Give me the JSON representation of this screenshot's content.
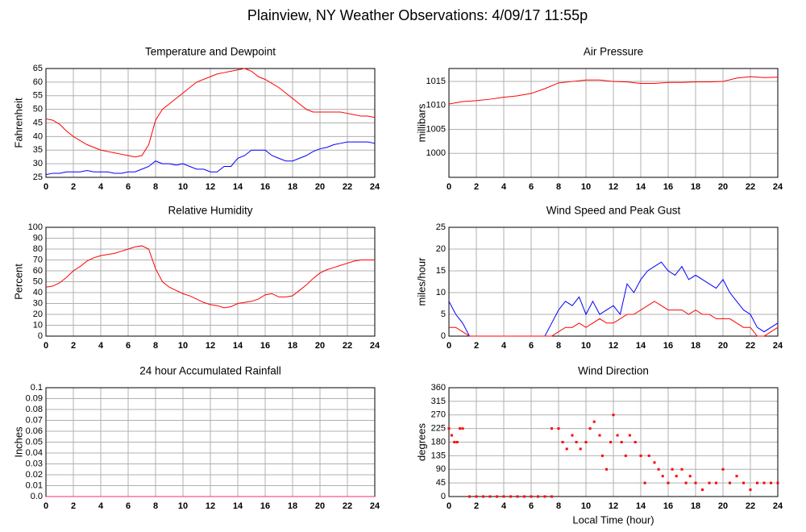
{
  "title": "Plainview, NY Weather Observations: 4/09/17 11:55p",
  "chart_data": [
    {
      "type": "line",
      "title": "Temperature and Dewpoint",
      "ylabel": "Fahrenheit",
      "x": [
        0,
        0.5,
        1,
        1.5,
        2,
        2.5,
        3,
        3.5,
        4,
        4.5,
        5,
        5.5,
        6,
        6.5,
        7,
        7.5,
        8,
        8.5,
        9,
        9.5,
        10,
        10.5,
        11,
        11.5,
        12,
        12.5,
        13,
        13.5,
        14,
        14.5,
        15,
        15.5,
        16,
        16.5,
        17,
        17.5,
        18,
        18.5,
        19,
        19.5,
        20,
        20.5,
        21,
        21.5,
        22,
        22.5,
        23,
        23.5,
        24
      ],
      "series": [
        {
          "color": "#ff0000",
          "values": [
            46.5,
            46,
            44.5,
            42,
            40,
            38.5,
            37,
            36,
            35,
            34.5,
            34,
            33.5,
            33,
            32.5,
            33,
            37,
            46,
            50,
            52,
            54,
            56,
            58,
            60,
            61,
            62,
            63,
            63.5,
            64,
            64.5,
            65,
            64,
            62,
            61,
            59.5,
            58,
            56,
            54,
            52,
            50,
            49,
            49,
            49,
            49,
            49,
            48.5,
            48,
            47.5,
            47.5,
            47
          ]
        },
        {
          "color": "#0000ff",
          "values": [
            26,
            26.5,
            26.5,
            27,
            27,
            27,
            27.5,
            27,
            27,
            27,
            26.5,
            26.5,
            27,
            27,
            28,
            29,
            31,
            30,
            30,
            29.5,
            30,
            29,
            28,
            28,
            27,
            27,
            29,
            29,
            32,
            33,
            35,
            35,
            35,
            33,
            32,
            31,
            31,
            32,
            33,
            34.5,
            35.5,
            36,
            37,
            37.5,
            38,
            38,
            38,
            38,
            37.5
          ]
        }
      ],
      "xlim": [
        0,
        24
      ],
      "xticks": [
        0,
        2,
        4,
        6,
        8,
        10,
        12,
        14,
        16,
        18,
        20,
        22,
        24
      ],
      "ylim": [
        25,
        65
      ],
      "yticks": [
        25,
        30,
        35,
        40,
        45,
        50,
        55,
        60,
        65
      ],
      "grid": true
    },
    {
      "type": "line",
      "title": "Air Pressure",
      "ylabel": "millibars",
      "x": [
        0,
        1,
        2,
        3,
        4,
        5,
        6,
        7,
        8,
        9,
        10,
        11,
        12,
        13,
        14,
        15,
        16,
        17,
        18,
        19,
        20,
        21,
        22,
        23,
        24
      ],
      "series": [
        {
          "color": "#ff0000",
          "values": [
            1010.3,
            1010.8,
            1011,
            1011.3,
            1011.7,
            1012,
            1012.5,
            1013.5,
            1014.7,
            1015,
            1015.3,
            1015.3,
            1015,
            1014.9,
            1014.6,
            1014.6,
            1014.8,
            1014.8,
            1014.9,
            1014.9,
            1015,
            1015.7,
            1016,
            1015.8,
            1015.9
          ]
        }
      ],
      "xlim": [
        0,
        24
      ],
      "xticks": [
        0,
        2,
        4,
        6,
        8,
        10,
        12,
        14,
        16,
        18,
        20,
        22,
        24
      ],
      "ylim": [
        995,
        1017.7
      ],
      "yticks": [
        1000,
        1005,
        1010,
        1015
      ],
      "grid": true
    },
    {
      "type": "line",
      "title": "Relative Humidity",
      "ylabel": "Percent",
      "x": [
        0,
        0.5,
        1,
        1.5,
        2,
        2.5,
        3,
        3.5,
        4,
        4.5,
        5,
        5.5,
        6,
        6.5,
        7,
        7.5,
        8,
        8.5,
        9,
        9.5,
        10,
        10.5,
        11,
        11.5,
        12,
        12.5,
        13,
        13.5,
        14,
        14.5,
        15,
        15.5,
        16,
        16.5,
        17,
        17.5,
        18,
        18.5,
        19,
        19.5,
        20,
        20.5,
        21,
        21.5,
        22,
        22.5,
        23,
        23.5,
        24
      ],
      "series": [
        {
          "color": "#ff0000",
          "values": [
            45,
            46,
            49,
            54,
            60,
            64,
            69,
            72,
            74,
            75,
            76,
            78,
            80,
            82,
            83,
            80,
            62,
            50,
            45,
            42,
            39,
            37,
            34,
            31,
            29,
            28,
            26,
            27,
            30,
            31,
            32,
            34,
            38,
            39,
            36,
            36,
            37,
            42,
            47,
            53,
            58,
            61,
            63,
            65,
            67,
            69,
            70,
            70,
            70
          ]
        }
      ],
      "xlim": [
        0,
        24
      ],
      "xticks": [
        0,
        2,
        4,
        6,
        8,
        10,
        12,
        14,
        16,
        18,
        20,
        22,
        24
      ],
      "ylim": [
        0,
        100
      ],
      "yticks": [
        0,
        10,
        20,
        30,
        40,
        50,
        60,
        70,
        80,
        90,
        100
      ],
      "grid": true
    },
    {
      "type": "line",
      "title": "Wind Speed and Peak Gust",
      "ylabel": "miles/hour",
      "x": [
        0,
        0.5,
        1,
        1.5,
        2,
        2.5,
        3,
        3.5,
        4,
        4.5,
        5,
        5.5,
        6,
        6.5,
        7,
        7.5,
        8,
        8.5,
        9,
        9.5,
        10,
        10.5,
        11,
        11.5,
        12,
        12.5,
        13,
        13.5,
        14,
        14.5,
        15,
        15.5,
        16,
        16.5,
        17,
        17.5,
        18,
        18.5,
        19,
        19.5,
        20,
        20.5,
        21,
        21.5,
        22,
        22.5,
        23,
        23.5,
        24
      ],
      "series": [
        {
          "color": "#0000ff",
          "values": [
            8,
            5,
            3,
            0,
            0,
            0,
            0,
            0,
            0,
            0,
            0,
            0,
            0,
            0,
            0,
            3,
            6,
            8,
            7,
            9,
            5,
            8,
            5,
            6,
            7,
            5,
            12,
            10,
            13,
            15,
            16,
            17,
            15,
            14,
            16,
            13,
            14,
            13,
            12,
            11,
            13,
            10,
            8,
            6,
            5,
            2,
            1,
            2,
            3
          ]
        },
        {
          "color": "#ff0000",
          "values": [
            2,
            2,
            1,
            0,
            0,
            0,
            0,
            0,
            0,
            0,
            0,
            0,
            0,
            0,
            0,
            0,
            1,
            2,
            2,
            3,
            2,
            3,
            4,
            3,
            3,
            4,
            5,
            5,
            6,
            7,
            8,
            7,
            6,
            6,
            6,
            5,
            6,
            5,
            5,
            4,
            4,
            4,
            3,
            2,
            2,
            0,
            0,
            1,
            2
          ]
        }
      ],
      "xlim": [
        0,
        24
      ],
      "xticks": [
        0,
        2,
        4,
        6,
        8,
        10,
        12,
        14,
        16,
        18,
        20,
        22,
        24
      ],
      "ylim": [
        0,
        25
      ],
      "yticks": [
        0,
        5,
        10,
        15,
        20,
        25
      ],
      "grid": true
    },
    {
      "type": "line",
      "title": "24 hour Accumulated Rainfall",
      "ylabel": "Inches",
      "x": [
        0,
        1,
        2,
        3,
        4,
        5,
        6,
        7,
        8,
        9,
        10,
        11,
        12,
        13,
        14,
        15,
        16,
        17,
        18,
        19,
        20,
        21,
        22,
        23,
        24
      ],
      "series": [
        {
          "color": "#ff2a6a",
          "values": [
            0,
            0,
            0,
            0,
            0,
            0,
            0,
            0,
            0,
            0,
            0,
            0,
            0,
            0,
            0,
            0,
            0,
            0,
            0,
            0,
            0,
            0,
            0,
            0,
            0
          ]
        }
      ],
      "xlim": [
        0,
        24
      ],
      "xticks": [
        0,
        2,
        4,
        6,
        8,
        10,
        12,
        14,
        16,
        18,
        20,
        22,
        24
      ],
      "ylim": [
        0,
        0.1
      ],
      "yticks": [
        {
          "value": 0,
          "label": "0.0"
        },
        0.01,
        0.02,
        0.03,
        0.04,
        0.05,
        0.06,
        0.07,
        0.08,
        0.09,
        0.1
      ],
      "grid": true
    },
    {
      "type": "scatter",
      "title": "Wind Direction",
      "ylabel": "degrees",
      "xlabel": "Local Time (hour)",
      "x": [
        0,
        0.2,
        0.4,
        0.6,
        0.8,
        1,
        1.5,
        2,
        2.5,
        3,
        3.5,
        4,
        4.5,
        5,
        5.5,
        6,
        6.5,
        7,
        7.5,
        7.5,
        8,
        8.3,
        8.6,
        9,
        9.3,
        9.6,
        10,
        10.3,
        10.6,
        11,
        11.2,
        11.5,
        11.8,
        12,
        12.3,
        12.6,
        12.9,
        13.2,
        13.6,
        14,
        14.3,
        14.6,
        15,
        15.3,
        15.6,
        16,
        16.3,
        16.6,
        17,
        17.3,
        17.6,
        18,
        18.5,
        19,
        19.5,
        20,
        20.5,
        21,
        21.5,
        22,
        22.5,
        23,
        23.5,
        24
      ],
      "series": [
        {
          "color": "#ff0000",
          "values": [
            225,
            202.5,
            180,
            180,
            225,
            225,
            0,
            0,
            0,
            0,
            0,
            0,
            0,
            0,
            0,
            0,
            0,
            0,
            0,
            225,
            225,
            180,
            157.5,
            202.5,
            180,
            157.5,
            180,
            225,
            247.5,
            202.5,
            135,
            90,
            180,
            270,
            202.5,
            180,
            135,
            202.5,
            180,
            135,
            45,
            135,
            112.5,
            90,
            67.5,
            45,
            90,
            67.5,
            90,
            45,
            67.5,
            45,
            22.5,
            45,
            45,
            90,
            45,
            67.5,
            45,
            22.5,
            45,
            45,
            45,
            45
          ]
        }
      ],
      "xlim": [
        0,
        24
      ],
      "xticks": [
        0,
        2,
        4,
        6,
        8,
        10,
        12,
        14,
        16,
        18,
        20,
        22,
        24
      ],
      "ylim": [
        0,
        360
      ],
      "yticks": [
        0,
        45,
        90,
        135,
        180,
        225,
        270,
        315,
        360
      ],
      "grid": true
    }
  ]
}
